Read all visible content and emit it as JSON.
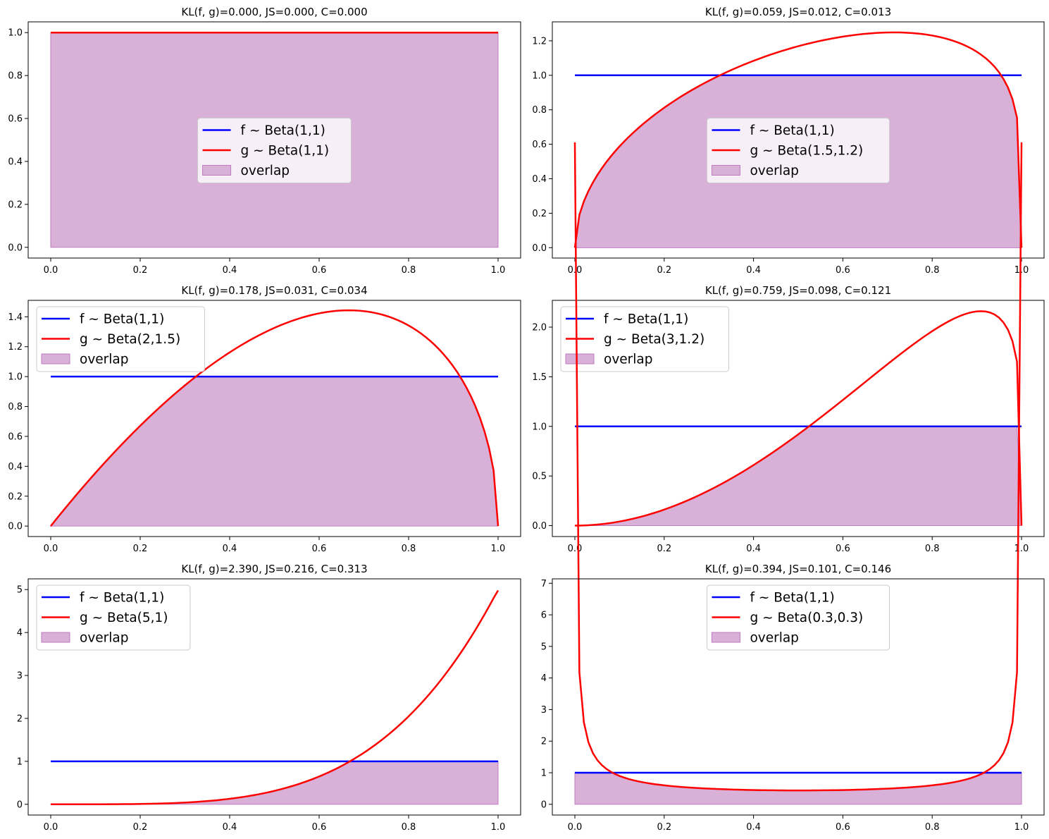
{
  "figure": {
    "colors": {
      "f": "#0000ff",
      "g": "#ff0000",
      "overlap": "#d8b0d8",
      "overlap_edge": "#c07cc0"
    }
  },
  "chart_data": [
    {
      "type": "line",
      "title": "KL(f, g)=0.000, JS=0.000, C=0.000",
      "xlabel": "",
      "ylabel": "",
      "xlim": [
        0,
        1
      ],
      "ylim": [
        -0.05,
        1.05
      ],
      "xticks": [
        "0.0",
        "0.2",
        "0.4",
        "0.6",
        "0.8",
        "1.0"
      ],
      "yticks": [
        "0.0",
        "0.2",
        "0.4",
        "0.6",
        "0.8",
        "1.0"
      ],
      "f": {
        "alpha": 1,
        "beta": 1
      },
      "g": {
        "alpha": 1,
        "beta": 1
      },
      "legend": [
        "f ~ Beta(1,1)",
        "g ~ Beta(1,1)",
        "overlap"
      ],
      "legend_loc": "center"
    },
    {
      "type": "line",
      "title": "KL(f, g)=0.059, JS=0.012, C=0.013",
      "xlabel": "",
      "ylabel": "",
      "xlim": [
        0,
        1
      ],
      "ylim": [
        -0.06,
        1.31
      ],
      "xticks": [
        "0.0",
        "0.2",
        "0.4",
        "0.6",
        "0.8",
        "1.0"
      ],
      "yticks": [
        "0.0",
        "0.2",
        "0.4",
        "0.6",
        "0.8",
        "1.0",
        "1.2"
      ],
      "f": {
        "alpha": 1,
        "beta": 1
      },
      "g": {
        "alpha": 1.5,
        "beta": 1.2
      },
      "legend": [
        "f ~ Beta(1,1)",
        "g ~ Beta(1.5,1.2)",
        "overlap"
      ],
      "legend_loc": "center"
    },
    {
      "type": "line",
      "title": "KL(f, g)=0.178, JS=0.031, C=0.034",
      "xlabel": "",
      "ylabel": "",
      "xlim": [
        0,
        1
      ],
      "ylim": [
        -0.07,
        1.51
      ],
      "xticks": [
        "0.0",
        "0.2",
        "0.4",
        "0.6",
        "0.8",
        "1.0"
      ],
      "yticks": [
        "0.0",
        "0.2",
        "0.4",
        "0.6",
        "0.8",
        "1.0",
        "1.2",
        "1.4"
      ],
      "f": {
        "alpha": 1,
        "beta": 1
      },
      "g": {
        "alpha": 2,
        "beta": 1.5
      },
      "legend": [
        "f ~ Beta(1,1)",
        "g ~ Beta(2,1.5)",
        "overlap"
      ],
      "legend_loc": "upper left"
    },
    {
      "type": "line",
      "title": "KL(f, g)=0.759, JS=0.098, C=0.121",
      "xlabel": "",
      "ylabel": "",
      "xlim": [
        0,
        1
      ],
      "ylim": [
        -0.11,
        2.27
      ],
      "xticks": [
        "0.0",
        "0.2",
        "0.4",
        "0.6",
        "0.8",
        "1.0"
      ],
      "yticks": [
        "0.0",
        "0.5",
        "1.0",
        "1.5",
        "2.0"
      ],
      "f": {
        "alpha": 1,
        "beta": 1
      },
      "g": {
        "alpha": 3,
        "beta": 1.2
      },
      "legend": [
        "f ~ Beta(1,1)",
        "g ~ Beta(3,1.2)",
        "overlap"
      ],
      "legend_loc": "upper left"
    },
    {
      "type": "line",
      "title": "KL(f, g)=2.390, JS=0.216, C=0.313",
      "xlabel": "",
      "ylabel": "",
      "xlim": [
        0,
        1
      ],
      "ylim": [
        -0.25,
        5.25
      ],
      "xticks": [
        "0.0",
        "0.2",
        "0.4",
        "0.6",
        "0.8",
        "1.0"
      ],
      "yticks": [
        "0",
        "1",
        "2",
        "3",
        "4",
        "5"
      ],
      "f": {
        "alpha": 1,
        "beta": 1
      },
      "g": {
        "alpha": 5,
        "beta": 1
      },
      "legend": [
        "f ~ Beta(1,1)",
        "g ~ Beta(5,1)",
        "overlap"
      ],
      "legend_loc": "upper left"
    },
    {
      "type": "line",
      "title": "KL(f, g)=0.394, JS=0.101, C=0.146",
      "xlabel": "",
      "ylabel": "",
      "xlim": [
        0,
        1
      ],
      "ylim": [
        -0.34,
        7.14
      ],
      "xticks": [
        "0.0",
        "0.2",
        "0.4",
        "0.6",
        "0.8",
        "1.0"
      ],
      "yticks": [
        "0",
        "1",
        "2",
        "3",
        "4",
        "5",
        "6",
        "7"
      ],
      "f": {
        "alpha": 1,
        "beta": 1
      },
      "g": {
        "alpha": 0.3,
        "beta": 0.3
      },
      "legend": [
        "f ~ Beta(1,1)",
        "g ~ Beta(0.3,0.3)",
        "overlap"
      ],
      "legend_loc": "upper center"
    }
  ]
}
